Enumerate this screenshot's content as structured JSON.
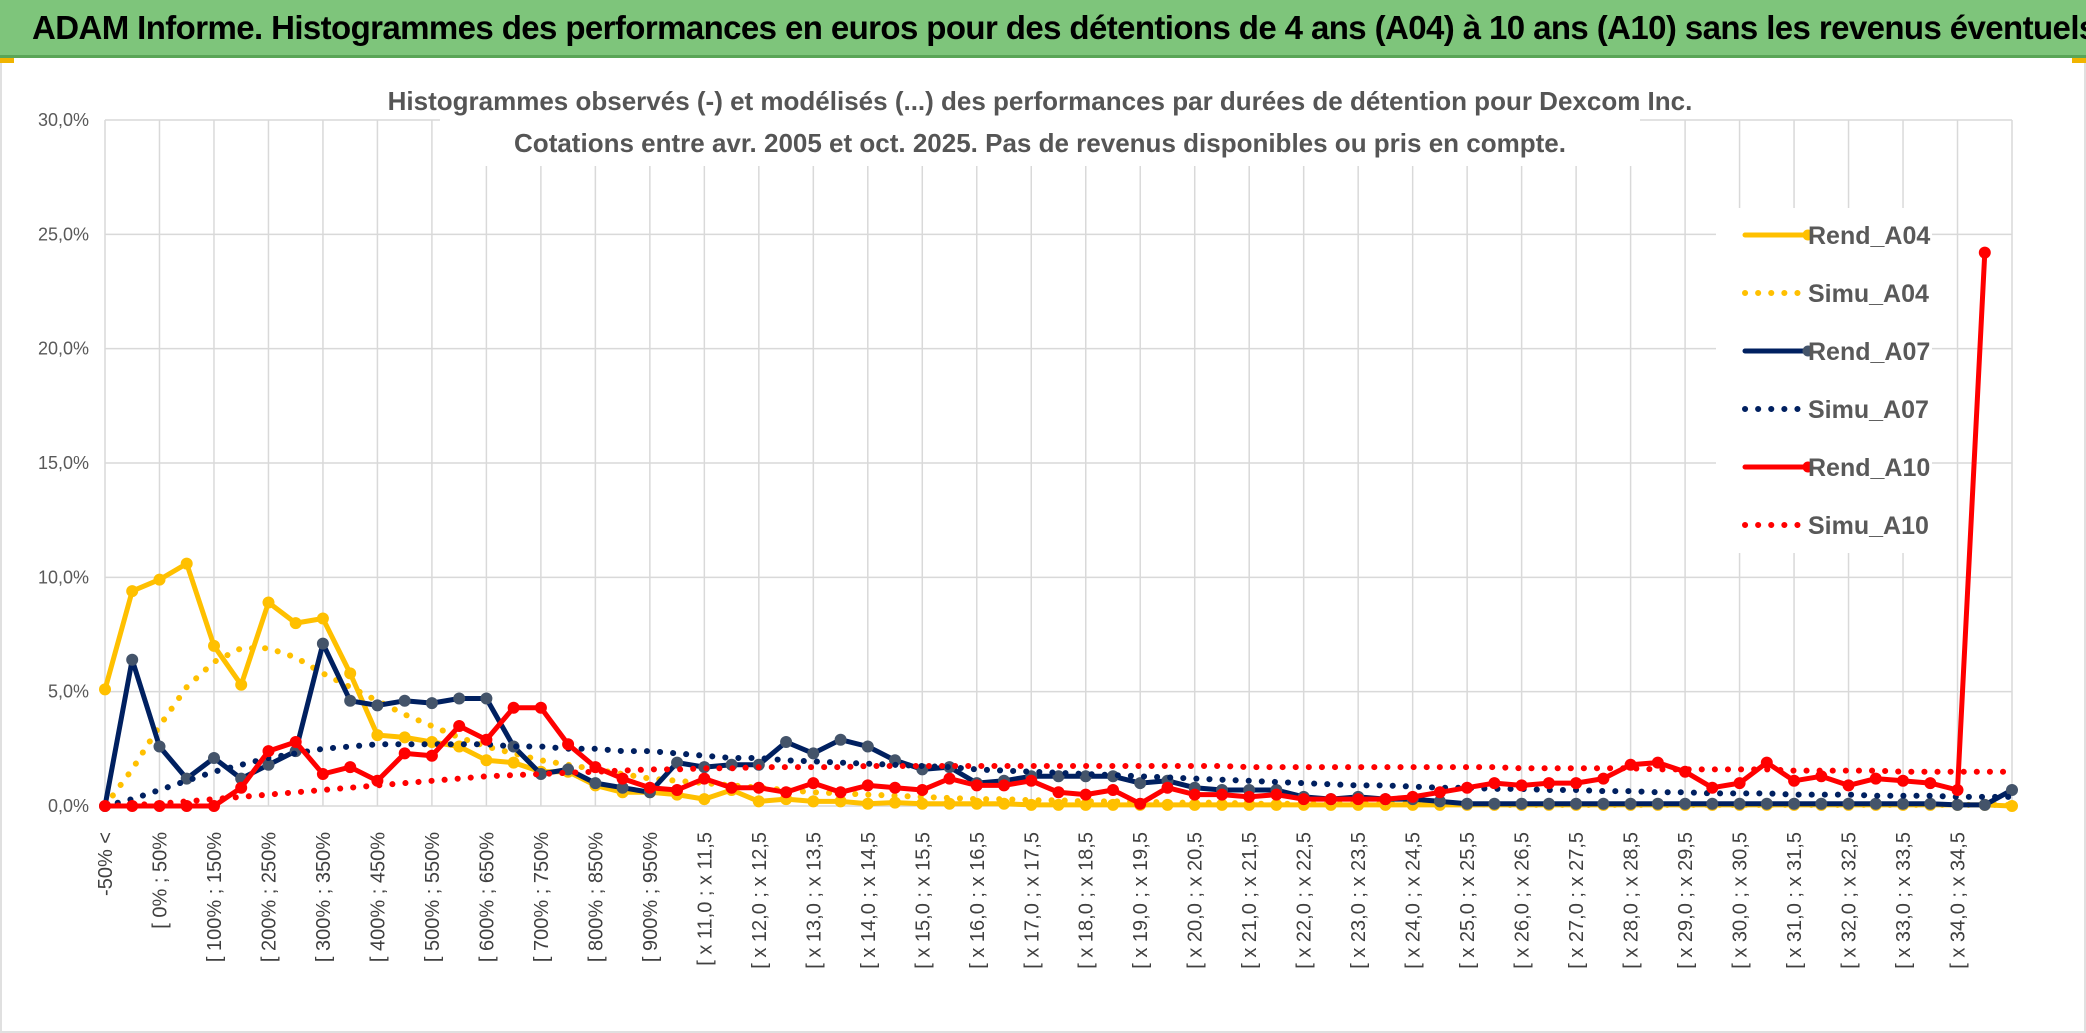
{
  "header": {
    "title": "ADAM Informe. Histogrammes des performances en euros pour des détentions de 4 ans (A04) à 10 ans (A10) sans les revenus éventuels"
  },
  "colors": {
    "banner": "#7ec57b",
    "A04": "#ffc000",
    "A07": "#002060",
    "A10": "#ff0000",
    "grid": "#d9d9d9"
  },
  "chart_data": {
    "type": "line",
    "title": "Histogrammes observés (-) et modélisés (...) des performances par durées de détention pour Dexcom Inc.",
    "subtitle": "Cotations entre avr. 2005 et oct. 2025. Pas de revenus disponibles ou pris en compte.",
    "ylim": [
      0,
      30
    ],
    "yticks": [
      "0,0%",
      "5,0%",
      "10,0%",
      "15,0%",
      "20,0%",
      "25,0%",
      "30,0%"
    ],
    "grid": true,
    "legend_position": "right",
    "x_labels": [
      "-50% <",
      "[ 0% ; 50%",
      "[ 100% ; 150%",
      "[ 200% ; 250%",
      "[ 300% ; 350%",
      "[ 400% ; 450%",
      "[ 500% ; 550%",
      "[ 600% ; 650%",
      "[ 700% ; 750%",
      "[ 800% ; 850%",
      "[ 900% ; 950%",
      "[ x 11,0 ; x 11,5",
      "[ x 12,0 ; x 12,5",
      "[ x 13,0 ; x 13,5",
      "[ x 14,0 ; x 14,5",
      "[ x 15,0 ; x 15,5",
      "[ x 16,0 ; x 16,5",
      "[ x 17,0 ; x 17,5",
      "[ x 18,0 ; x 18,5",
      "[ x 19,0 ; x 19,5",
      "[ x 20,0 ; x 20,5",
      "[ x 21,0 ; x 21,5",
      "[ x 22,0 ; x 22,5",
      "[ x 23,0 ; x 23,5",
      "[ x 24,0 ; x 24,5",
      "[ x 25,0 ; x 25,5",
      "[ x 26,0 ; x 26,5",
      "[ x 27,0 ; x 27,5",
      "[ x 28,0 ; x 28,5",
      "[ x 29,0 ; x 29,5",
      "[ x 30,0 ; x 30,5",
      "[ x 31,0 ; x 31,5",
      "[ x 32,0 ; x 32,5",
      "[ x 33,0 ; x 33,5",
      "[ x 34,0 ; x 34,5"
    ],
    "label_every": 2,
    "series": [
      {
        "name": "Rend_A04",
        "style": "solid",
        "markers": true,
        "color": "#ffc000",
        "values": [
          5.1,
          9.4,
          9.9,
          10.6,
          7.0,
          5.3,
          8.9,
          8.0,
          8.2,
          5.8,
          3.1,
          3.0,
          2.8,
          2.6,
          2.0,
          1.9,
          1.5,
          1.5,
          0.9,
          0.6,
          0.6,
          0.5,
          0.3,
          0.7,
          0.2,
          0.3,
          0.2,
          0.2,
          0.1,
          0.15,
          0.1,
          0.1,
          0.1,
          0.1,
          0.05,
          0.05,
          0.05,
          0.05,
          0.05,
          0.05,
          0.05,
          0.05,
          0.05,
          0.05,
          0.05,
          0.05,
          0.05,
          0.05,
          0.05,
          0.05,
          0.05,
          0.05,
          0.05,
          0.05,
          0.05,
          0.05,
          0.05,
          0.05,
          0.05,
          0.05,
          0.05,
          0.05,
          0.05,
          0.05,
          0.05,
          0.05,
          0.05,
          0.05,
          0.05,
          0.05,
          0.0
        ]
      },
      {
        "name": "Simu_A04",
        "style": "dotted",
        "markers": false,
        "color": "#ffc000",
        "values": [
          0.0,
          1.6,
          3.5,
          5.2,
          6.3,
          6.9,
          6.9,
          6.5,
          5.8,
          5.2,
          4.6,
          4.0,
          3.5,
          3.0,
          2.6,
          2.3,
          2.0,
          1.8,
          1.6,
          1.4,
          1.2,
          1.1,
          1.0,
          0.9,
          0.8,
          0.7,
          0.6,
          0.55,
          0.5,
          0.45,
          0.4,
          0.35,
          0.3,
          0.3,
          0.25,
          0.25,
          0.2,
          0.2,
          0.2,
          0.15,
          0.15,
          0.15,
          0.1,
          0.1,
          0.1,
          0.1,
          0.1,
          0.1,
          0.1,
          0.1,
          0.1,
          0.05,
          0.05,
          0.05,
          0.05,
          0.05,
          0.05,
          0.05,
          0.05,
          0.05,
          0.05,
          0.05,
          0.05,
          0.05,
          0.05,
          0.05,
          0.05,
          0.05,
          0.05,
          0.05,
          0.05
        ]
      },
      {
        "name": "Rend_A07",
        "style": "solid",
        "markers": true,
        "color": "#002060",
        "values": [
          0.0,
          6.4,
          2.6,
          1.2,
          2.1,
          1.2,
          1.8,
          2.4,
          7.1,
          4.6,
          4.4,
          4.6,
          4.5,
          4.7,
          4.7,
          2.6,
          1.4,
          1.6,
          1.0,
          0.8,
          0.6,
          1.9,
          1.7,
          1.8,
          1.8,
          2.8,
          2.3,
          2.9,
          2.6,
          2.0,
          1.6,
          1.7,
          1.0,
          1.1,
          1.3,
          1.3,
          1.3,
          1.3,
          1.0,
          1.1,
          0.8,
          0.7,
          0.7,
          0.7,
          0.4,
          0.3,
          0.4,
          0.3,
          0.3,
          0.2,
          0.1,
          0.1,
          0.1,
          0.1,
          0.1,
          0.1,
          0.1,
          0.1,
          0.1,
          0.1,
          0.1,
          0.1,
          0.1,
          0.1,
          0.1,
          0.1,
          0.1,
          0.1,
          0.05,
          0.05,
          0.7
        ]
      },
      {
        "name": "Simu_A07",
        "style": "dotted",
        "markers": false,
        "color": "#002060",
        "values": [
          0.0,
          0.3,
          0.7,
          1.1,
          1.5,
          1.8,
          2.1,
          2.3,
          2.5,
          2.6,
          2.7,
          2.7,
          2.7,
          2.7,
          2.7,
          2.6,
          2.6,
          2.5,
          2.5,
          2.4,
          2.4,
          2.3,
          2.2,
          2.1,
          2.1,
          2.0,
          1.95,
          1.9,
          1.85,
          1.8,
          1.75,
          1.7,
          1.6,
          1.55,
          1.5,
          1.45,
          1.4,
          1.35,
          1.3,
          1.25,
          1.2,
          1.15,
          1.1,
          1.05,
          1.0,
          0.95,
          0.9,
          0.9,
          0.85,
          0.8,
          0.8,
          0.75,
          0.75,
          0.7,
          0.7,
          0.65,
          0.65,
          0.6,
          0.6,
          0.55,
          0.55,
          0.55,
          0.5,
          0.5,
          0.5,
          0.45,
          0.45,
          0.45,
          0.4,
          0.4,
          0.4
        ]
      },
      {
        "name": "Rend_A10",
        "style": "solid",
        "markers": true,
        "color": "#ff0000",
        "values": [
          0.0,
          0.0,
          0.0,
          0.0,
          0.0,
          0.8,
          2.4,
          2.8,
          1.4,
          1.7,
          1.1,
          2.3,
          2.2,
          3.5,
          2.9,
          4.3,
          4.3,
          2.7,
          1.7,
          1.2,
          0.8,
          0.7,
          1.2,
          0.8,
          0.8,
          0.6,
          1.0,
          0.6,
          0.9,
          0.8,
          0.7,
          1.2,
          0.9,
          0.9,
          1.1,
          0.6,
          0.5,
          0.7,
          0.1,
          0.8,
          0.5,
          0.5,
          0.4,
          0.5,
          0.3,
          0.3,
          0.3,
          0.3,
          0.4,
          0.6,
          0.8,
          1.0,
          0.9,
          1.0,
          1.0,
          1.2,
          1.8,
          1.9,
          1.5,
          0.8,
          1.0,
          1.9,
          1.1,
          1.3,
          0.9,
          1.2,
          1.1,
          1.0,
          0.7,
          24.2,
          null
        ]
      },
      {
        "name": "Simu_A10",
        "style": "dotted",
        "markers": false,
        "color": "#ff0000",
        "values": [
          0.0,
          0.05,
          0.1,
          0.2,
          0.3,
          0.4,
          0.5,
          0.6,
          0.7,
          0.8,
          0.9,
          1.0,
          1.1,
          1.2,
          1.3,
          1.35,
          1.4,
          1.45,
          1.5,
          1.55,
          1.6,
          1.6,
          1.65,
          1.65,
          1.7,
          1.7,
          1.7,
          1.7,
          1.75,
          1.75,
          1.75,
          1.75,
          1.75,
          1.75,
          1.75,
          1.75,
          1.75,
          1.75,
          1.75,
          1.75,
          1.75,
          1.75,
          1.7,
          1.7,
          1.7,
          1.7,
          1.7,
          1.7,
          1.7,
          1.7,
          1.7,
          1.7,
          1.65,
          1.65,
          1.65,
          1.65,
          1.65,
          1.6,
          1.6,
          1.6,
          1.6,
          1.6,
          1.55,
          1.55,
          1.55,
          1.55,
          1.5,
          1.5,
          1.5,
          1.5,
          1.5
        ]
      }
    ]
  }
}
